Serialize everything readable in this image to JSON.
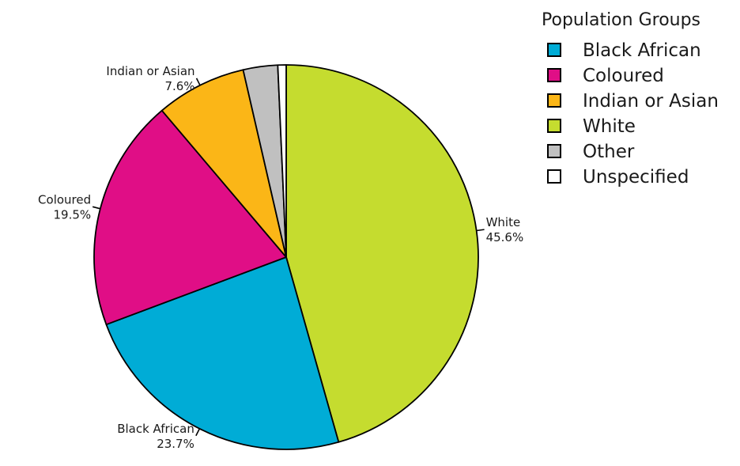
{
  "chart_data": {
    "type": "pie",
    "legend": {
      "title": "Population Groups",
      "placement": "top-right"
    },
    "slices": [
      {
        "name": "White",
        "value": 45.6,
        "label": "White",
        "percent_label": "45.6%",
        "color": "#c5dc2f"
      },
      {
        "name": "Black African",
        "value": 23.7,
        "label": "Black African",
        "percent_label": "23.7%",
        "color": "#00acd6"
      },
      {
        "name": "Coloured",
        "value": 19.5,
        "label": "Coloured",
        "percent_label": "19.5%",
        "color": "#e00e86"
      },
      {
        "name": "Indian or Asian",
        "value": 7.6,
        "label": "Indian or Asian",
        "percent_label": "7.6%",
        "color": "#fbb617"
      },
      {
        "name": "Other",
        "value": 2.9,
        "label": "",
        "percent_label": "",
        "color": "#c0c0c0"
      },
      {
        "name": "Unspecified",
        "value": 0.7,
        "label": "",
        "percent_label": "",
        "color": "#ffffff"
      }
    ],
    "legend_order": [
      "Black African",
      "Coloured",
      "Indian or Asian",
      "White",
      "Other",
      "Unspecified"
    ]
  }
}
